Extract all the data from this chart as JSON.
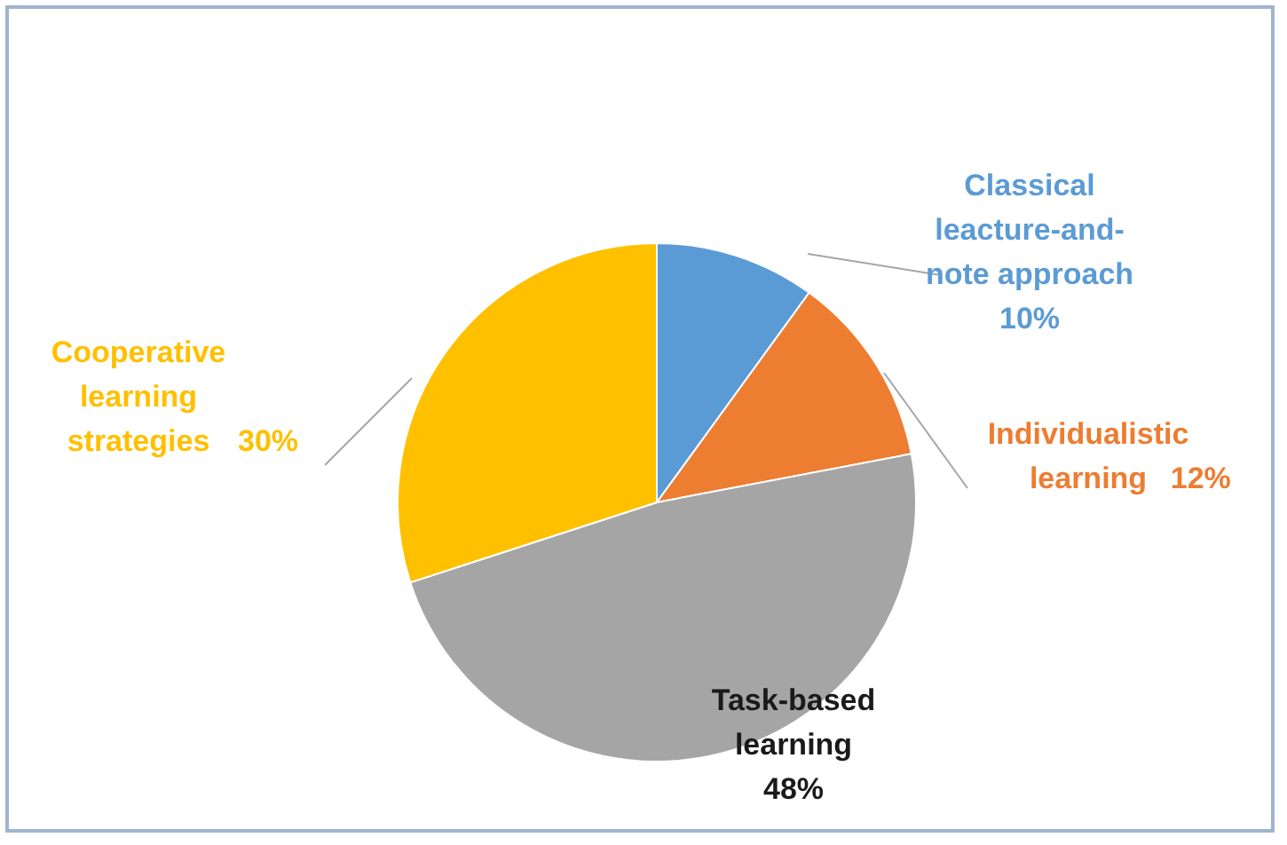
{
  "chart_data": {
    "type": "pie",
    "categories": [
      "Classical\nleacture-and-\nnote approach",
      "Individualistic\nlearning",
      "Task-based\nlearning",
      "Cooperative\nlearning\nstrategies"
    ],
    "values": [
      10,
      12,
      48,
      30
    ],
    "colors": [
      "#5b9bd5",
      "#ed7d31",
      "#a5a5a5",
      "#ffc000"
    ],
    "value_labels": [
      "10%",
      "12%",
      "48%",
      "30%"
    ]
  }
}
